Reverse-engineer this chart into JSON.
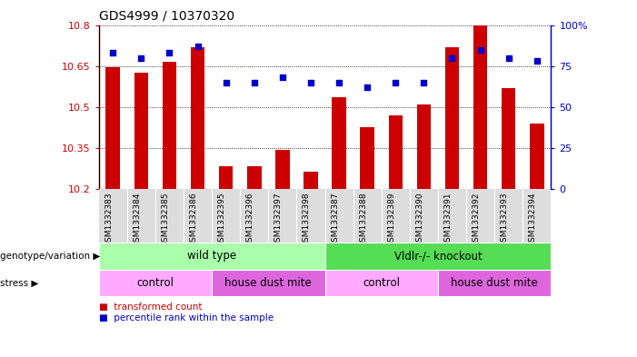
{
  "title": "GDS4999 / 10370320",
  "samples": [
    "GSM1332383",
    "GSM1332384",
    "GSM1332385",
    "GSM1332386",
    "GSM1332395",
    "GSM1332396",
    "GSM1332397",
    "GSM1332398",
    "GSM1332387",
    "GSM1332388",
    "GSM1332389",
    "GSM1332390",
    "GSM1332391",
    "GSM1332392",
    "GSM1332393",
    "GSM1332394"
  ],
  "bar_values": [
    10.645,
    10.625,
    10.665,
    10.72,
    10.285,
    10.285,
    10.345,
    10.265,
    10.535,
    10.425,
    10.47,
    10.51,
    10.72,
    10.8,
    10.57,
    10.44
  ],
  "dot_values": [
    83,
    80,
    83,
    87,
    65,
    65,
    68,
    65,
    65,
    62,
    65,
    65,
    80,
    85,
    80,
    78
  ],
  "ymin": 10.2,
  "ymax": 10.8,
  "y2min": 0,
  "y2max": 100,
  "yticks": [
    10.2,
    10.35,
    10.5,
    10.65,
    10.8
  ],
  "y2ticks": [
    0,
    25,
    50,
    75,
    100
  ],
  "bar_color": "#cc0000",
  "dot_color": "#0000cc",
  "genotype_groups": [
    {
      "label": "wild type",
      "start": 0,
      "end": 8,
      "color": "#aaffaa"
    },
    {
      "label": "Vldlr-/- knockout",
      "start": 8,
      "end": 16,
      "color": "#55dd55"
    }
  ],
  "stress_groups": [
    {
      "label": "control",
      "start": 0,
      "end": 4,
      "color": "#ffaaff"
    },
    {
      "label": "house dust mite",
      "start": 4,
      "end": 8,
      "color": "#dd66dd"
    },
    {
      "label": "control",
      "start": 8,
      "end": 12,
      "color": "#ffaaff"
    },
    {
      "label": "house dust mite",
      "start": 12,
      "end": 16,
      "color": "#dd66dd"
    }
  ],
  "genotype_label": "genotype/variation",
  "stress_label": "stress",
  "bg_color": "#dddddd"
}
